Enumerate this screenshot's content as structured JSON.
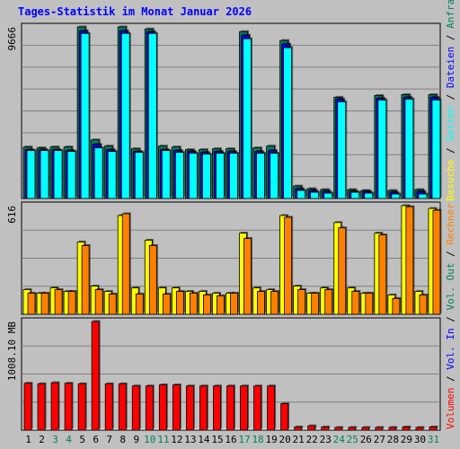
{
  "title": "Tages-Statistik im Monat Januar 2026",
  "colors": {
    "background": "#c0c0c0",
    "title": "#0000ff",
    "hits": "#00805c",
    "files": "#0000ff",
    "pages": "#00ffff",
    "visits": "#ffff00",
    "sites": "#ff8000",
    "kbytes": "#ff0000",
    "weekend_label": "#00805c",
    "weekday_label": "#000000"
  },
  "legend_right": {
    "panel1": [
      "Anfragen",
      "Dateien",
      "Seiten",
      "Besuche"
    ],
    "panel2": [
      "Rechner",
      "Vol. Out",
      "Vol. In",
      "Volumen"
    ],
    "panel1_colors": [
      "#00805c",
      "#0000ff",
      "#00ffff",
      "#ffff00"
    ],
    "panel2_colors": [
      "#ff8000",
      "#00805c",
      "#0000ff",
      "#ff0000"
    ]
  },
  "chart_data": [
    {
      "type": "bar",
      "ylabel": "9666",
      "ylim": [
        0,
        9666
      ],
      "categories": [
        "1",
        "2",
        "3",
        "4",
        "5",
        "6",
        "7",
        "8",
        "9",
        "10",
        "11",
        "12",
        "13",
        "14",
        "15",
        "16",
        "17",
        "18",
        "19",
        "20",
        "21",
        "22",
        "23",
        "24",
        "25",
        "26",
        "27",
        "28",
        "29",
        "30",
        "31"
      ],
      "weekend": [
        false,
        false,
        true,
        true,
        false,
        false,
        false,
        false,
        false,
        true,
        true,
        false,
        false,
        false,
        false,
        false,
        true,
        true,
        false,
        false,
        false,
        false,
        false,
        true,
        true,
        false,
        false,
        false,
        false,
        false,
        true
      ],
      "series": [
        {
          "name": "Anfragen",
          "values": [
            2900,
            2850,
            2900,
            2900,
            9666,
            3300,
            2950,
            9666,
            2800,
            9550,
            2950,
            2900,
            2750,
            2750,
            2800,
            2800,
            9400,
            2850,
            2950,
            8900,
            700,
            550,
            500,
            5700,
            500,
            450,
            5800,
            450,
            5850,
            500,
            5850
          ]
        },
        {
          "name": "Dateien",
          "values": [
            2750,
            2750,
            2750,
            2700,
            9450,
            3050,
            2750,
            9450,
            2650,
            9400,
            2750,
            2700,
            2650,
            2600,
            2650,
            2650,
            9200,
            2650,
            2700,
            8700,
            550,
            450,
            400,
            5600,
            400,
            400,
            5650,
            350,
            5700,
            400,
            5700
          ]
        },
        {
          "name": "Seiten",
          "values": [
            2700,
            2700,
            2700,
            2650,
            9300,
            2850,
            2650,
            9300,
            2600,
            9300,
            2700,
            2600,
            2550,
            2500,
            2550,
            2550,
            9000,
            2550,
            2550,
            8500,
            450,
            350,
            300,
            5450,
            350,
            300,
            5550,
            250,
            5600,
            250,
            5550
          ]
        }
      ]
    },
    {
      "type": "bar",
      "ylabel": "616",
      "ylim": [
        0,
        616
      ],
      "series": [
        {
          "name": "Besuche",
          "values": [
            140,
            120,
            150,
            130,
            410,
            160,
            130,
            560,
            150,
            420,
            150,
            150,
            130,
            130,
            120,
            120,
            460,
            150,
            140,
            560,
            160,
            120,
            150,
            520,
            150,
            120,
            460,
            110,
            616,
            130,
            600
          ]
        },
        {
          "name": "Rechner",
          "values": [
            120,
            120,
            140,
            130,
            390,
            140,
            115,
            570,
            115,
            390,
            115,
            130,
            120,
            110,
            105,
            120,
            430,
            130,
            130,
            550,
            140,
            120,
            140,
            490,
            130,
            120,
            450,
            90,
            610,
            110,
            590
          ]
        }
      ]
    },
    {
      "type": "bar",
      "ylabel": "1008.10 MB",
      "ylim": [
        0,
        1008.1
      ],
      "series": [
        {
          "name": "Volumen",
          "values": [
            435,
            430,
            440,
            435,
            430,
            1008,
            430,
            430,
            410,
            410,
            420,
            420,
            410,
            410,
            410,
            410,
            410,
            410,
            410,
            245,
            30,
            40,
            30,
            25,
            25,
            25,
            25,
            25,
            30,
            25,
            30
          ]
        }
      ]
    }
  ]
}
